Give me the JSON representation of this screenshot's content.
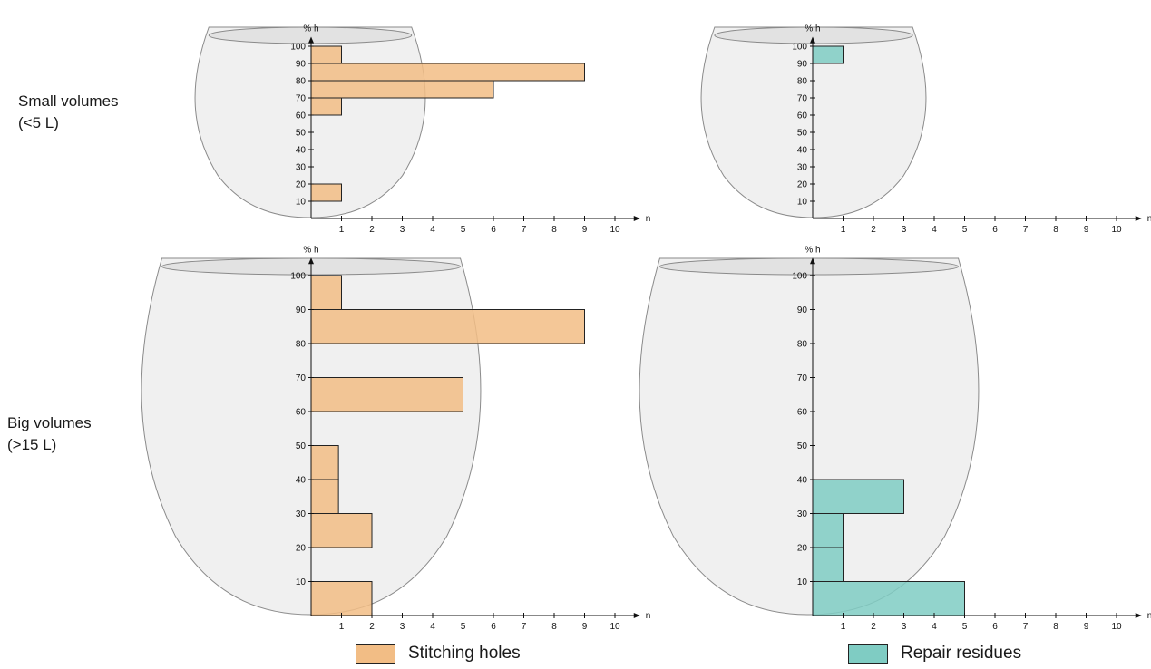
{
  "row_labels": [
    {
      "line1": "Small volumes",
      "line2": "(<5 L)"
    },
    {
      "line1": "Big volumes",
      "line2": "(>15 L)"
    }
  ],
  "legend": [
    {
      "label": "Stitching holes",
      "color": "#f2bd85"
    },
    {
      "label": "Repair residues",
      "color": "#7fccc3"
    }
  ],
  "chart_data": [
    {
      "type": "bar",
      "orientation": "horizontal",
      "row": "Small volumes",
      "series_name": "Stitching holes",
      "color": "#f2bd85",
      "ylabel": "% h",
      "xlabel": "n",
      "xlim": [
        0,
        10
      ],
      "ylim": [
        0,
        100
      ],
      "xticks": [
        1,
        2,
        3,
        4,
        5,
        6,
        7,
        8,
        9,
        10
      ],
      "yticks": [
        10,
        20,
        30,
        40,
        50,
        60,
        70,
        80,
        90,
        100
      ],
      "bins": [
        {
          "from": 90,
          "to": 100,
          "value": 1
        },
        {
          "from": 80,
          "to": 90,
          "value": 9
        },
        {
          "from": 70,
          "to": 80,
          "value": 6
        },
        {
          "from": 60,
          "to": 70,
          "value": 1
        },
        {
          "from": 10,
          "to": 20,
          "value": 1
        }
      ]
    },
    {
      "type": "bar",
      "orientation": "horizontal",
      "row": "Small volumes",
      "series_name": "Repair residues",
      "color": "#7fccc3",
      "ylabel": "% h",
      "xlabel": "n",
      "xlim": [
        0,
        10
      ],
      "ylim": [
        0,
        100
      ],
      "xticks": [
        1,
        2,
        3,
        4,
        5,
        6,
        7,
        8,
        9,
        10
      ],
      "yticks": [
        10,
        20,
        30,
        40,
        50,
        60,
        70,
        80,
        90,
        100
      ],
      "bins": [
        {
          "from": 90,
          "to": 100,
          "value": 1
        }
      ]
    },
    {
      "type": "bar",
      "orientation": "horizontal",
      "row": "Big volumes",
      "series_name": "Stitching holes",
      "color": "#f2bd85",
      "ylabel": "% h",
      "xlabel": "n",
      "xlim": [
        0,
        10
      ],
      "ylim": [
        0,
        100
      ],
      "xticks": [
        1,
        2,
        3,
        4,
        5,
        6,
        7,
        8,
        9,
        10
      ],
      "yticks": [
        10,
        20,
        30,
        40,
        50,
        60,
        70,
        80,
        90,
        100
      ],
      "bins": [
        {
          "from": 90,
          "to": 100,
          "value": 1
        },
        {
          "from": 80,
          "to": 90,
          "value": 9
        },
        {
          "from": 60,
          "to": 70,
          "value": 5
        },
        {
          "from": 40,
          "to": 50,
          "value": 0.9
        },
        {
          "from": 30,
          "to": 40,
          "value": 0.9
        },
        {
          "from": 20,
          "to": 30,
          "value": 2
        },
        {
          "from": 0,
          "to": 10,
          "value": 2
        }
      ]
    },
    {
      "type": "bar",
      "orientation": "horizontal",
      "row": "Big volumes",
      "series_name": "Repair residues",
      "color": "#7fccc3",
      "ylabel": "% h",
      "xlabel": "n",
      "xlim": [
        0,
        10
      ],
      "ylim": [
        0,
        100
      ],
      "xticks": [
        1,
        2,
        3,
        4,
        5,
        6,
        7,
        8,
        9,
        10
      ],
      "yticks": [
        10,
        20,
        30,
        40,
        50,
        60,
        70,
        80,
        90,
        100
      ],
      "bins": [
        {
          "from": 30,
          "to": 40,
          "value": 3
        },
        {
          "from": 20,
          "to": 30,
          "value": 1
        },
        {
          "from": 10,
          "to": 20,
          "value": 1
        },
        {
          "from": 0,
          "to": 10,
          "value": 5
        }
      ]
    }
  ]
}
